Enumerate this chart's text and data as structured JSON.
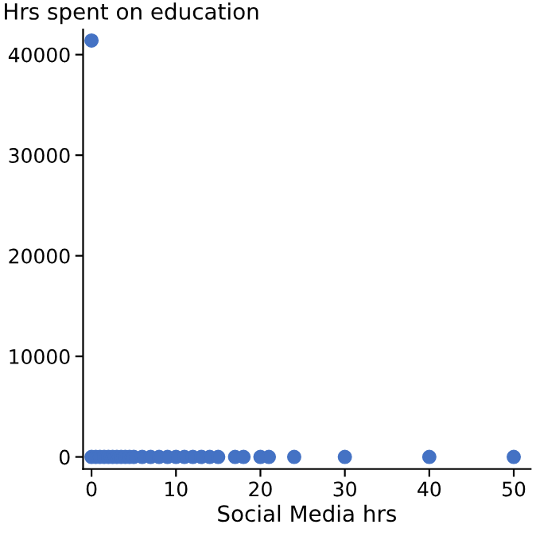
{
  "chart_data": {
    "type": "scatter",
    "ylabel": "Hrs spent on education",
    "xlabel": "Social Media hrs",
    "x": [
      0,
      0,
      0.5,
      1,
      1.5,
      2,
      2.5,
      3,
      3.5,
      4,
      4.5,
      5,
      6,
      7,
      8,
      9,
      10,
      11,
      12,
      13,
      14,
      15,
      17,
      18,
      20,
      21,
      24,
      30,
      40,
      50
    ],
    "series": [
      {
        "color": "#4472c4",
        "values": [
          41400,
          0,
          0,
          0,
          0,
          0,
          0,
          0,
          0,
          0,
          0,
          0,
          0,
          0,
          0,
          0,
          0,
          0,
          0,
          0,
          0,
          0,
          0,
          0,
          0,
          0,
          0,
          0,
          0,
          0
        ]
      }
    ],
    "xlim": [
      -1,
      52
    ],
    "ylim": [
      -1200,
      42500
    ],
    "xticks": [
      0,
      10,
      20,
      30,
      40,
      50
    ],
    "yticks": [
      0,
      10000,
      20000,
      30000,
      40000
    ],
    "marker": "circle",
    "grid": false,
    "legend": false
  }
}
